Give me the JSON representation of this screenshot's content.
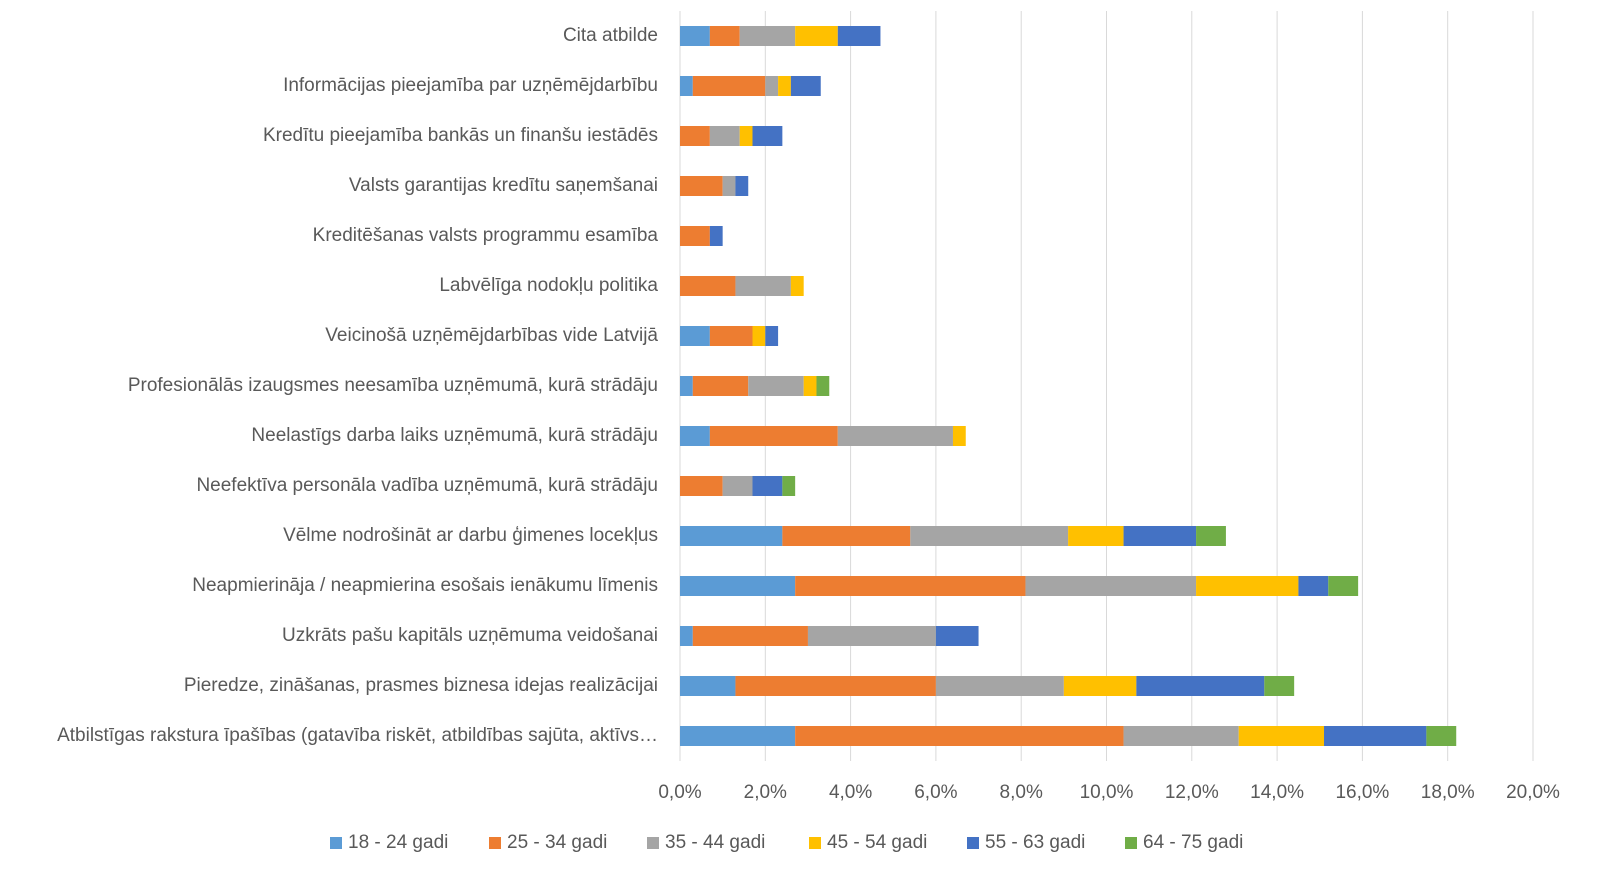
{
  "chart_data": {
    "type": "stacked_barh",
    "categories": [
      "Cita atbilde",
      "Informācijas pieejamība par uzņēmējdarbību",
      "Kredītu pieejamība bankās un finanšu iestādēs",
      "Valsts garantijas kredītu saņemšanai",
      "Kreditēšanas valsts programmu esamība",
      "Labvēlīga nodokļu politika",
      "Veicinošā uzņēmējdarbības vide Latvijā",
      "Profesionālās izaugsmes neesamība uzņēmumā, kurā strādāju",
      "Neelastīgs darba laiks uzņēmumā, kurā strādāju",
      "Neefektīva personāla vadība uzņēmumā, kurā strādāju",
      "Vēlme nodrošināt ar darbu ģimenes locekļus",
      "Neapmierināja / neapmierina esošais ienākumu līmenis",
      "Uzkrāts pašu kapitāls uzņēmuma veidošanai",
      "Pieredze, zināšanas, prasmes biznesa idejas realizācijai",
      "Atbilstīgas rakstura īpašības (gatavība riskēt, atbildības sajūta, aktīvs…"
    ],
    "series": [
      {
        "name": "18 - 24 gadi",
        "color": "#5b9bd5",
        "values": [
          0.7,
          0.3,
          0,
          0,
          0,
          0,
          0.7,
          0.3,
          0.7,
          0,
          2.4,
          2.7,
          0.3,
          1.3,
          2.7
        ]
      },
      {
        "name": "25 - 34 gadi",
        "color": "#ed7d31",
        "values": [
          0.7,
          1.7,
          0.7,
          1.0,
          0.7,
          1.3,
          1.0,
          1.3,
          3.0,
          1.0,
          3.0,
          5.4,
          2.7,
          4.7,
          7.7
        ]
      },
      {
        "name": "35 - 44 gadi",
        "color": "#a5a5a5",
        "values": [
          1.3,
          0.3,
          0.7,
          0.3,
          0,
          1.3,
          0,
          1.3,
          2.7,
          0.7,
          3.7,
          4.0,
          3.0,
          3.0,
          2.7
        ]
      },
      {
        "name": "45 - 54 gadi",
        "color": "#ffc000",
        "values": [
          1.0,
          0.3,
          0.3,
          0,
          0,
          0.3,
          0.3,
          0.3,
          0.3,
          0,
          1.3,
          2.4,
          0,
          1.7,
          2.0
        ]
      },
      {
        "name": "55 - 63 gadi",
        "color": "#4472c4",
        "values": [
          1.0,
          0.7,
          0.7,
          0.3,
          0.3,
          0,
          0.3,
          0,
          0,
          0.7,
          1.7,
          0.7,
          1.0,
          3.0,
          2.4
        ]
      },
      {
        "name": "64 - 75 gadi",
        "color": "#70ad47",
        "values": [
          0,
          0,
          0,
          0,
          0,
          0,
          0,
          0.3,
          0,
          0.3,
          0.7,
          0.7,
          0,
          0.7,
          0.7
        ]
      }
    ],
    "xlim": [
      0,
      20
    ],
    "xticks": [
      {
        "value": 0,
        "label": "0,0%"
      },
      {
        "value": 2,
        "label": "2,0%"
      },
      {
        "value": 4,
        "label": "4,0%"
      },
      {
        "value": 6,
        "label": "6,0%"
      },
      {
        "value": 8,
        "label": "8,0%"
      },
      {
        "value": 10,
        "label": "10,0%"
      },
      {
        "value": 12,
        "label": "12,0%"
      },
      {
        "value": 14,
        "label": "14,0%"
      },
      {
        "value": 16,
        "label": "16,0%"
      },
      {
        "value": 18,
        "label": "18,0%"
      },
      {
        "value": 20,
        "label": "20,0%"
      }
    ],
    "grid": true,
    "legend": "bottom"
  }
}
